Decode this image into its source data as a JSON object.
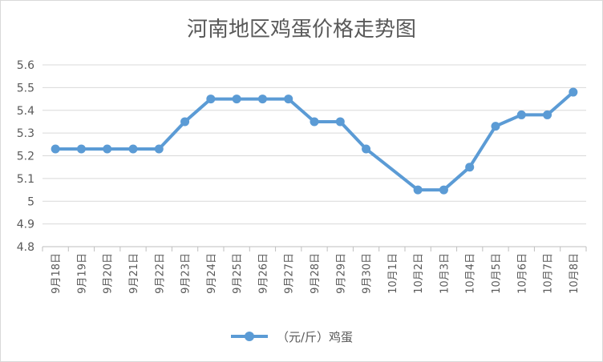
{
  "chart_data": {
    "type": "line",
    "title": "河南地区鸡蛋价格走势图",
    "xlabel": "",
    "ylabel": "",
    "ylim": [
      4.8,
      5.6
    ],
    "yticks": [
      "4.8",
      "4.9",
      "5",
      "5.1",
      "5.2",
      "5.3",
      "5.4",
      "5.5",
      "5.6"
    ],
    "grid": true,
    "legend_position": "bottom",
    "categories": [
      "9月18日",
      "9月19日",
      "9月20日",
      "9月21日",
      "9月22日",
      "9月23日",
      "9月24日",
      "9月25日",
      "9月26日",
      "9月27日",
      "9月28日",
      "9月29日",
      "9月30日",
      "10月1日",
      "10月2日",
      "10月3日",
      "10月4日",
      "10月5日",
      "10月6日",
      "10月7日",
      "10月8日"
    ],
    "series": [
      {
        "name": "（元/斤）鸡蛋",
        "color": "#5b9bd5",
        "values": [
          5.23,
          5.23,
          5.23,
          5.23,
          5.23,
          5.35,
          5.45,
          5.45,
          5.45,
          5.45,
          5.35,
          5.35,
          5.23,
          null,
          5.05,
          5.05,
          5.15,
          5.33,
          5.38,
          5.38,
          5.48
        ]
      }
    ]
  }
}
